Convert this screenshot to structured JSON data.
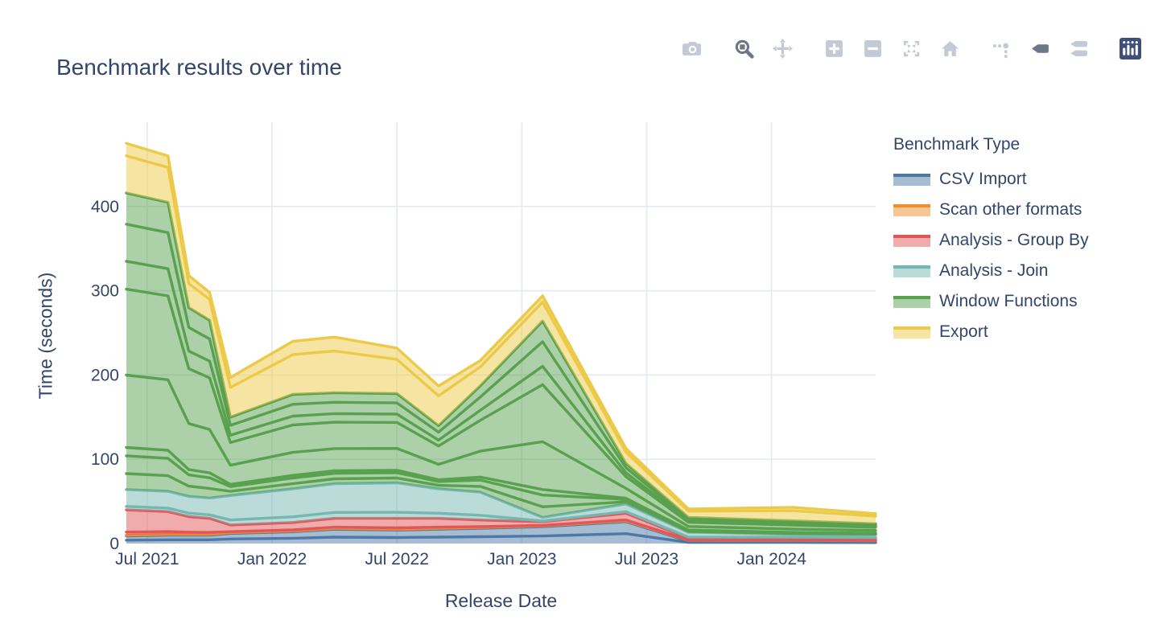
{
  "page": {
    "title": "Benchmark results over time"
  },
  "modebar": {
    "buttons": [
      "camera",
      "zoom",
      "pan",
      "zoom-in",
      "zoom-out",
      "autoscale",
      "reset-home",
      "toggle-spikelines",
      "hover-closest",
      "hover-compare",
      "plotly-logo"
    ]
  },
  "chart_data": {
    "type": "area",
    "stacked": true,
    "title": "Benchmark results over time",
    "xlabel": "Release Date",
    "ylabel": "Time (seconds)",
    "legend_title": "Benchmark Type",
    "grid": true,
    "legend_position": "right",
    "x_dates": [
      "2021-06",
      "2021-08",
      "2021-09",
      "2021-10",
      "2021-11",
      "2022-02",
      "2022-04",
      "2022-07",
      "2022-09",
      "2022-11",
      "2023-02",
      "2023-06",
      "2023-09",
      "2024-02",
      "2024-06"
    ],
    "x_months": [
      0,
      2,
      3,
      4,
      5,
      8,
      10,
      13,
      15,
      17,
      20,
      24,
      27,
      32,
      36
    ],
    "xlim_months": [
      0,
      36
    ],
    "ylim": [
      0,
      500
    ],
    "y_ticks": [
      0,
      100,
      200,
      300,
      400
    ],
    "x_tick_months": [
      1,
      7,
      13,
      19,
      25,
      31
    ],
    "x_tick_labels": [
      "Jul 2021",
      "Jan 2022",
      "Jul 2022",
      "Jan 2023",
      "Jul 2023",
      "Jan 2024"
    ],
    "series": [
      {
        "name": "CSV Import",
        "color": "#4e79a7",
        "values": [
          9,
          10,
          10,
          10,
          12,
          14,
          17,
          16,
          17,
          18,
          20,
          26,
          3,
          3,
          2.5
        ],
        "sub_fractions": [
          0.45,
          0.55
        ]
      },
      {
        "name": "Scan other formats",
        "color": "#f28e2b",
        "values": [
          1,
          1,
          1,
          1,
          1,
          1,
          1,
          1,
          1,
          1,
          1,
          1,
          1,
          1,
          1
        ],
        "sub_fractions": [
          1
        ]
      },
      {
        "name": "Analysis - Group By",
        "color": "#e15759",
        "values": [
          30,
          27,
          21,
          19,
          9,
          10,
          12,
          13,
          12,
          9,
          5,
          9,
          2.5,
          3,
          3
        ],
        "sub_fractions": [
          0.12,
          0.88
        ]
      },
      {
        "name": "Analysis - Join",
        "color": "#76b7b2",
        "values": [
          24,
          24,
          24,
          24,
          35,
          40,
          41,
          42,
          35,
          33,
          5,
          11,
          7,
          4,
          4
        ],
        "sub_fractions": [
          0.17,
          0.83
        ]
      },
      {
        "name": "Window Functions",
        "color": "#59a14f",
        "values": [
          352,
          343,
          224,
          211,
          93,
          112,
          108,
          106,
          75,
          126,
          233,
          48,
          17.5,
          16,
          13
        ],
        "sub_fractions": [
          0.054,
          0.06,
          0.028,
          0.244,
          0.29,
          0.094,
          0.125,
          0.105
        ]
      },
      {
        "name": "Export",
        "color": "#edc948",
        "values": [
          59,
          55,
          38,
          33,
          47,
          63,
          66,
          54,
          47,
          30,
          30,
          18,
          10,
          16,
          12
        ],
        "sub_fractions": [
          0.75,
          0.25
        ]
      }
    ]
  }
}
